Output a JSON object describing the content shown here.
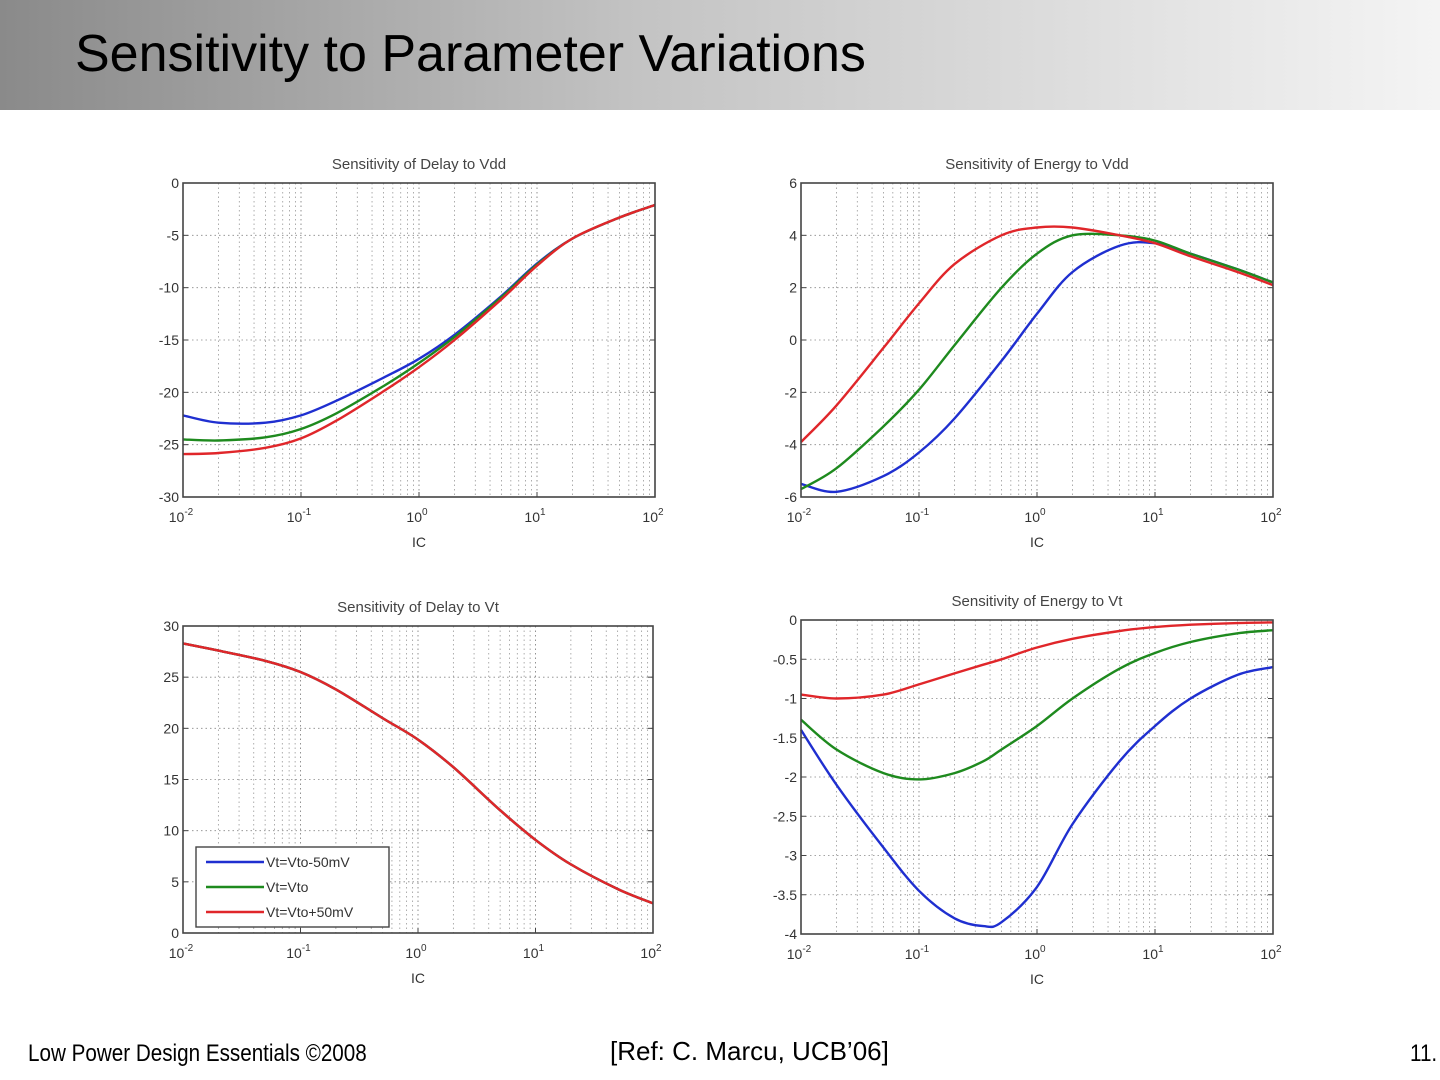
{
  "slide": {
    "title": "Sensitivity to Parameter Variations",
    "footer_left": "Low Power Design Essentials ©2008",
    "footer_center": "[Ref: C. Marcu, UCB’06]",
    "footer_right": "11."
  },
  "colors": {
    "blue": "#1f2fd0",
    "green": "#1e8a1e",
    "red": "#e0262a"
  },
  "legend": [
    {
      "label": "Vt=Vto-50mV",
      "color": "#1f2fd0"
    },
    {
      "label": "Vt=Vto",
      "color": "#1e8a1e"
    },
    {
      "label": "Vt=Vto+50mV",
      "color": "#e0262a"
    }
  ],
  "chart_data": [
    {
      "type": "line",
      "title": "Sensitivity of Delay to Vdd",
      "xlabel": "IC",
      "ylabel": "",
      "xscale": "log",
      "xlim": [
        0.01,
        100
      ],
      "ylim": [
        -30,
        0
      ],
      "xticks": [
        0.01,
        0.1,
        1,
        10,
        100
      ],
      "xtick_labels": [
        {
          "base": "10",
          "exp": "-2"
        },
        {
          "base": "10",
          "exp": "-1"
        },
        {
          "base": "10",
          "exp": "0"
        },
        {
          "base": "10",
          "exp": "1"
        },
        {
          "base": "10",
          "exp": "2"
        }
      ],
      "yticks": [
        0,
        -5,
        -10,
        -15,
        -20,
        -25,
        -30
      ],
      "ytick_labels": [
        "0",
        "-5",
        "-10",
        "-15",
        "-20",
        "-25",
        "-30"
      ],
      "grid": true,
      "x": [
        0.01,
        0.02,
        0.05,
        0.1,
        0.2,
        0.5,
        1,
        2,
        5,
        10,
        20,
        50,
        100
      ],
      "series": [
        {
          "name": "Vt=Vto-50mV",
          "color": "#1f2fd0",
          "values": [
            -22.2,
            -22.9,
            -22.9,
            -22.2,
            -20.8,
            -18.6,
            -16.8,
            -14.5,
            -10.8,
            -7.7,
            -5.3,
            -3.3,
            -2.1
          ]
        },
        {
          "name": "Vt=Vto",
          "color": "#1e8a1e",
          "values": [
            -24.5,
            -24.6,
            -24.3,
            -23.5,
            -22.0,
            -19.4,
            -17.2,
            -14.7,
            -10.9,
            -7.8,
            -5.3,
            -3.3,
            -2.1
          ]
        },
        {
          "name": "Vt=Vto+50mV",
          "color": "#e0262a",
          "values": [
            -25.9,
            -25.8,
            -25.3,
            -24.4,
            -22.7,
            -19.9,
            -17.6,
            -15.0,
            -11.1,
            -7.9,
            -5.3,
            -3.3,
            -2.1
          ]
        }
      ]
    },
    {
      "type": "line",
      "title": "Sensitivity of Energy to Vdd",
      "xlabel": "IC",
      "ylabel": "",
      "xscale": "log",
      "xlim": [
        0.01,
        100
      ],
      "ylim": [
        -6,
        6
      ],
      "xticks": [
        0.01,
        0.1,
        1,
        10,
        100
      ],
      "xtick_labels": [
        {
          "base": "10",
          "exp": "-2"
        },
        {
          "base": "10",
          "exp": "-1"
        },
        {
          "base": "10",
          "exp": "0"
        },
        {
          "base": "10",
          "exp": "1"
        },
        {
          "base": "10",
          "exp": "2"
        }
      ],
      "yticks": [
        6,
        4,
        2,
        0,
        -2,
        -4,
        -6
      ],
      "ytick_labels": [
        "6",
        "4",
        "2",
        "0",
        "-2",
        "-4",
        "-6"
      ],
      "grid": true,
      "x": [
        0.01,
        0.02,
        0.05,
        0.1,
        0.2,
        0.5,
        1,
        2,
        5,
        10,
        20,
        50,
        100
      ],
      "series": [
        {
          "name": "Vt=Vto-50mV",
          "color": "#1f2fd0",
          "values": [
            -5.5,
            -5.8,
            -5.2,
            -4.3,
            -3.0,
            -0.8,
            1.0,
            2.6,
            3.6,
            3.7,
            3.3,
            2.7,
            2.2
          ]
        },
        {
          "name": "Vt=Vto",
          "color": "#1e8a1e",
          "values": [
            -5.7,
            -4.9,
            -3.3,
            -1.9,
            -0.2,
            2.0,
            3.3,
            4.0,
            4.0,
            3.8,
            3.3,
            2.7,
            2.2
          ]
        },
        {
          "name": "Vt=Vto+50mV",
          "color": "#e0262a",
          "values": [
            -3.9,
            -2.5,
            -0.3,
            1.4,
            2.9,
            4.0,
            4.3,
            4.3,
            4.0,
            3.7,
            3.2,
            2.6,
            2.1
          ]
        }
      ]
    },
    {
      "type": "line",
      "title": "Sensitivity of Delay to Vt",
      "xlabel": "IC",
      "ylabel": "",
      "xscale": "log",
      "xlim": [
        0.01,
        100
      ],
      "ylim": [
        0,
        30
      ],
      "xticks": [
        0.01,
        0.1,
        1,
        10,
        100
      ],
      "xtick_labels": [
        {
          "base": "10",
          "exp": "-2"
        },
        {
          "base": "10",
          "exp": "-1"
        },
        {
          "base": "10",
          "exp": "0"
        },
        {
          "base": "10",
          "exp": "1"
        },
        {
          "base": "10",
          "exp": "2"
        }
      ],
      "yticks": [
        30,
        25,
        20,
        15,
        10,
        5,
        0
      ],
      "ytick_labels": [
        "30",
        "25",
        "20",
        "15",
        "10",
        "5",
        "0"
      ],
      "grid": true,
      "legend_position": "bottom-left",
      "x": [
        0.01,
        0.02,
        0.05,
        0.1,
        0.2,
        0.5,
        1,
        2,
        5,
        10,
        20,
        50,
        100
      ],
      "series": [
        {
          "name": "Vt=Vto-50mV",
          "color": "#1f2fd0",
          "values": [
            28.3,
            27.6,
            26.6,
            25.5,
            23.8,
            21.0,
            18.9,
            16.2,
            12.0,
            9.1,
            6.7,
            4.3,
            2.9
          ]
        },
        {
          "name": "Vt=Vto",
          "color": "#1e8a1e",
          "values": [
            28.3,
            27.6,
            26.6,
            25.5,
            23.8,
            21.0,
            18.9,
            16.2,
            12.0,
            9.1,
            6.7,
            4.3,
            2.9
          ]
        },
        {
          "name": "Vt=Vto+50mV",
          "color": "#e0262a",
          "values": [
            28.3,
            27.6,
            26.6,
            25.5,
            23.8,
            21.0,
            18.9,
            16.2,
            12.0,
            9.1,
            6.7,
            4.3,
            2.9
          ]
        }
      ]
    },
    {
      "type": "line",
      "title": "Sensitivity of Energy to Vt",
      "xlabel": "IC",
      "ylabel": "",
      "xscale": "log",
      "xlim": [
        0.01,
        100
      ],
      "ylim": [
        -4,
        0
      ],
      "xticks": [
        0.01,
        0.1,
        1,
        10,
        100
      ],
      "xtick_labels": [
        {
          "base": "10",
          "exp": "-2"
        },
        {
          "base": "10",
          "exp": "-1"
        },
        {
          "base": "10",
          "exp": "0"
        },
        {
          "base": "10",
          "exp": "1"
        },
        {
          "base": "10",
          "exp": "2"
        }
      ],
      "yticks": [
        0,
        -0.5,
        -1,
        -1.5,
        -2,
        -2.5,
        -3,
        -3.5,
        -4
      ],
      "ytick_labels": [
        "0",
        "-0.5",
        "-1",
        "-1.5",
        "-2",
        "-2.5",
        "-3",
        "-3.5",
        "-4"
      ],
      "grid": true,
      "x": [
        0.01,
        0.02,
        0.05,
        0.1,
        0.2,
        0.35,
        0.5,
        1,
        2,
        5,
        10,
        20,
        50,
        100
      ],
      "series": [
        {
          "name": "Vt=Vto-50mV",
          "color": "#1f2fd0",
          "values": [
            -1.4,
            -2.1,
            -2.9,
            -3.45,
            -3.8,
            -3.9,
            -3.85,
            -3.4,
            -2.6,
            -1.8,
            -1.35,
            -1.0,
            -0.7,
            -0.6
          ]
        },
        {
          "name": "Vt=Vto",
          "color": "#1e8a1e",
          "values": [
            -1.27,
            -1.65,
            -1.95,
            -2.03,
            -1.95,
            -1.8,
            -1.65,
            -1.35,
            -1.0,
            -0.62,
            -0.42,
            -0.28,
            -0.17,
            -0.13
          ]
        },
        {
          "name": "Vt=Vto+50mV",
          "color": "#e0262a",
          "values": [
            -0.95,
            -1.0,
            -0.95,
            -0.82,
            -0.68,
            -0.57,
            -0.5,
            -0.35,
            -0.24,
            -0.14,
            -0.09,
            -0.06,
            -0.04,
            -0.03
          ]
        }
      ]
    }
  ]
}
